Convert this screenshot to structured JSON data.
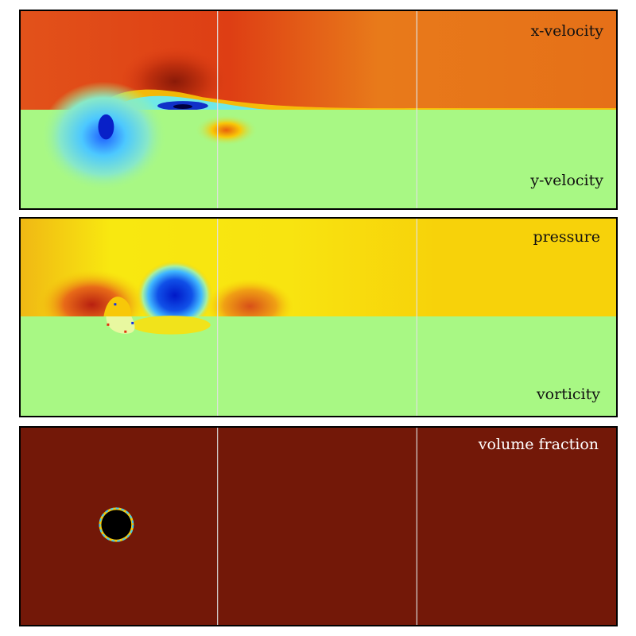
{
  "panels": [
    {
      "labels": {
        "top": "x-velocity",
        "bottom": "y-velocity"
      }
    },
    {
      "labels": {
        "top": "pressure",
        "bottom": "vorticity"
      }
    },
    {
      "labels": {
        "top": "volume fraction"
      }
    }
  ],
  "colors": {
    "xvel_base": "#e67018",
    "yvel_base": "#a8f884",
    "pressure_base": "#f7d20a",
    "vorticity_base": "#a8f884",
    "volume_fraction_base": "#731808",
    "circle_fill": "#000000",
    "grid_line": "#d9d9d9"
  }
}
